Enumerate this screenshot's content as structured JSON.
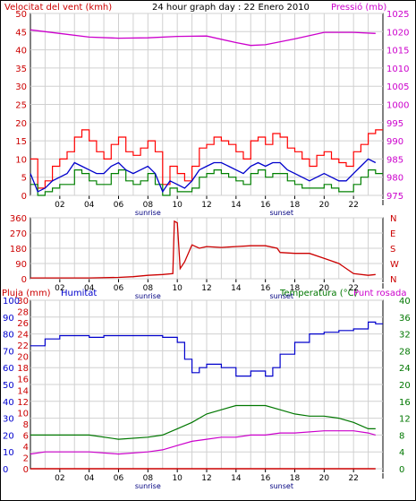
{
  "header": {
    "title": "24 hour graph day : 22 Enero 2010",
    "wind_label": "Velocitat del vent (kmh)",
    "pressure_label": "Pressió (mb)"
  },
  "panel3_labels": {
    "rain": "Pluja (mm)",
    "humidity": "Humitat",
    "temperature": "Temperatura (°C)",
    "dewpoint": "Punt rosada"
  },
  "colors": {
    "wind": "#ff0000",
    "gust_or_avg": "#008000",
    "series_blue": "#0000cc",
    "pressure": "#cc00cc",
    "direction": "#cc0000",
    "humidity": "#0000cc",
    "temperature": "#007700",
    "dewpoint": "#cc00cc",
    "rain": "#cc0000"
  },
  "chart_data": [
    {
      "type": "line",
      "name": "wind-pressure",
      "x_ticks": [
        "02",
        "04",
        "06",
        "08",
        "10",
        "12",
        "14",
        "16",
        "18",
        "20",
        "22",
        ""
      ],
      "x_sublabels": {
        "sunrise": "sunrise",
        "sunset": "sunset"
      },
      "y_left": {
        "ticks": [
          0,
          5,
          10,
          15,
          20,
          25,
          30,
          35,
          40,
          45,
          50
        ],
        "range": [
          0,
          50
        ]
      },
      "y_right": {
        "ticks": [
          975,
          980,
          985,
          990,
          995,
          1000,
          1005,
          1010,
          1015,
          1020,
          1025
        ],
        "range": [
          975,
          1025
        ]
      },
      "series": [
        {
          "role": "gust",
          "x": [
            0.0,
            0.5,
            1.0,
            1.5,
            2.0,
            2.5,
            3.0,
            3.5,
            4.0,
            4.5,
            5.0,
            5.5,
            6.0,
            6.5,
            7.0,
            7.5,
            8.0,
            8.5,
            9.0,
            9.5,
            10.0,
            10.5,
            11.0,
            11.5,
            12.0,
            12.5,
            13.0,
            13.5,
            14.0,
            14.5,
            15.0,
            15.5,
            16.0,
            16.5,
            17.0,
            17.5,
            18.0,
            18.5,
            19.0,
            19.5,
            20.0,
            20.5,
            21.0,
            21.5,
            22.0,
            22.5,
            23.0,
            23.5
          ],
          "values": [
            10,
            2,
            4,
            8,
            10,
            12,
            16,
            18,
            15,
            12,
            10,
            14,
            16,
            12,
            11,
            13,
            15,
            12,
            3,
            8,
            6,
            4,
            8,
            13,
            14,
            16,
            15,
            14,
            12,
            10,
            15,
            16,
            14,
            17,
            16,
            13,
            12,
            10,
            8,
            11,
            12,
            10,
            9,
            8,
            12,
            14,
            17,
            18
          ]
        },
        {
          "role": "average",
          "x": [
            0.0,
            0.5,
            1.0,
            1.5,
            2.0,
            2.5,
            3.0,
            3.5,
            4.0,
            4.5,
            5.0,
            5.5,
            6.0,
            6.5,
            7.0,
            7.5,
            8.0,
            8.5,
            9.0,
            9.5,
            10.0,
            10.5,
            11.0,
            11.5,
            12.0,
            12.5,
            13.0,
            13.5,
            14.0,
            14.5,
            15.0,
            15.5,
            16.0,
            16.5,
            17.0,
            17.5,
            18.0,
            18.5,
            19.0,
            19.5,
            20.0,
            20.5,
            21.0,
            21.5,
            22.0,
            22.5,
            23.0,
            23.5
          ],
          "values": [
            6,
            1,
            2,
            4,
            5,
            6,
            9,
            8,
            7,
            6,
            6,
            8,
            9,
            7,
            6,
            7,
            8,
            6,
            1,
            4,
            3,
            2,
            4,
            7,
            8,
            9,
            9,
            8,
            7,
            6,
            8,
            9,
            8,
            9,
            9,
            7,
            6,
            5,
            4,
            5,
            6,
            5,
            4,
            4,
            6,
            8,
            10,
            9
          ]
        },
        {
          "role": "low",
          "x": [
            0.0,
            0.5,
            1.0,
            1.5,
            2.0,
            2.5,
            3.0,
            3.5,
            4.0,
            4.5,
            5.0,
            5.5,
            6.0,
            6.5,
            7.0,
            7.5,
            8.0,
            8.5,
            9.0,
            9.5,
            10.0,
            10.5,
            11.0,
            11.5,
            12.0,
            12.5,
            13.0,
            13.5,
            14.0,
            14.5,
            15.0,
            15.5,
            16.0,
            16.5,
            17.0,
            17.5,
            18.0,
            18.5,
            19.0,
            19.5,
            20.0,
            20.5,
            21.0,
            21.5,
            22.0,
            22.5,
            23.0,
            23.5
          ],
          "values": [
            3,
            0,
            1,
            2,
            3,
            3,
            7,
            6,
            4,
            3,
            3,
            6,
            7,
            4,
            3,
            4,
            6,
            3,
            0,
            2,
            1,
            1,
            2,
            5,
            6,
            7,
            6,
            5,
            4,
            3,
            6,
            7,
            5,
            6,
            6,
            4,
            3,
            2,
            2,
            2,
            3,
            2,
            1,
            1,
            3,
            5,
            7,
            6
          ]
        },
        {
          "role": "pressure",
          "x": [
            0,
            2,
            4,
            6,
            8,
            10,
            12,
            14,
            15,
            16,
            18,
            20,
            22,
            23.5
          ],
          "values": [
            1020.5,
            1019.5,
            1018.5,
            1018.2,
            1018.3,
            1018.7,
            1018.8,
            1017,
            1016.2,
            1016.4,
            1018,
            1019.8,
            1019.8,
            1019.5
          ]
        }
      ]
    },
    {
      "type": "line",
      "name": "wind-direction",
      "x_ticks": [
        "02",
        "04",
        "06",
        "08",
        "10",
        "12",
        "14",
        "16",
        "18",
        "20",
        "22",
        ""
      ],
      "x_sublabels": {
        "sunrise": "sunrise",
        "sunset": "sunset"
      },
      "y_left": {
        "ticks": [
          0,
          90,
          180,
          270,
          360
        ],
        "range": [
          0,
          360
        ]
      },
      "y_right_labels": [
        "N",
        "W",
        "S",
        "E",
        "N"
      ],
      "series": [
        {
          "role": "direction",
          "x": [
            0,
            2,
            4,
            6,
            7,
            8,
            9,
            9.7,
            9.8,
            10.0,
            10.2,
            10.5,
            11.0,
            11.5,
            12,
            13,
            14,
            15,
            16,
            16.8,
            17,
            18,
            19,
            20,
            21,
            22,
            23,
            23.5
          ],
          "values": [
            5,
            5,
            5,
            8,
            12,
            20,
            25,
            30,
            340,
            330,
            60,
            100,
            200,
            180,
            190,
            185,
            190,
            195,
            195,
            180,
            155,
            150,
            150,
            120,
            90,
            30,
            20,
            25
          ]
        }
      ]
    },
    {
      "type": "line",
      "name": "humidity-temperature",
      "x_ticks": [
        "02",
        "04",
        "06",
        "08",
        "10",
        "12",
        "14",
        "16",
        "18",
        "20",
        "22",
        ""
      ],
      "x_sublabels": {
        "sunrise": "sunrise",
        "sunset": "sunset"
      },
      "y_left_rain": {
        "ticks": [
          0,
          2,
          4,
          6,
          8,
          10,
          12,
          14,
          16,
          18,
          20,
          22,
          24,
          26,
          28,
          30
        ],
        "range": [
          0,
          30
        ]
      },
      "y_left_humidity": {
        "ticks": [
          0,
          10,
          20,
          30,
          40,
          50,
          60,
          70,
          80,
          90,
          100
        ],
        "range": [
          0,
          100
        ]
      },
      "y_right": {
        "ticks": [
          0,
          4,
          8,
          12,
          16,
          20,
          24,
          28,
          32,
          36,
          40
        ],
        "range": [
          0,
          40
        ]
      },
      "series": [
        {
          "role": "humidity",
          "x": [
            0,
            1,
            2,
            3,
            4,
            5,
            6,
            7,
            8,
            9,
            10,
            10.5,
            11,
            11.5,
            12,
            13,
            14,
            14.5,
            15,
            16,
            16.5,
            17,
            18,
            19,
            20,
            21,
            22,
            23,
            23.5
          ],
          "values": [
            73,
            77,
            79,
            79,
            78,
            79,
            79,
            79,
            79,
            78,
            75,
            65,
            57,
            60,
            62,
            60,
            55,
            55,
            58,
            55,
            60,
            68,
            75,
            80,
            81,
            82,
            83,
            87,
            86
          ]
        },
        {
          "role": "temperature",
          "x": [
            0,
            2,
            4,
            6,
            8,
            9,
            10,
            11,
            12,
            13,
            14,
            15,
            16,
            17,
            18,
            19,
            20,
            21,
            22,
            23,
            23.5
          ],
          "values": [
            8,
            8,
            8,
            7,
            7.5,
            8,
            9.5,
            11,
            13,
            14,
            15,
            15,
            15,
            14,
            13,
            12.5,
            12.5,
            12,
            11,
            9.5,
            9.5
          ]
        },
        {
          "role": "dewpoint",
          "x": [
            0,
            1,
            2,
            4,
            6,
            8,
            9,
            10,
            11,
            12,
            13,
            14,
            15,
            16,
            17,
            18,
            20,
            22,
            23,
            23.5
          ],
          "values": [
            3.5,
            4,
            4,
            4,
            3.5,
            4,
            4.5,
            5.5,
            6.5,
            7,
            7.5,
            7.5,
            8,
            8,
            8.5,
            8.5,
            9,
            9,
            8.5,
            8
          ]
        },
        {
          "role": "rain",
          "x": [
            0,
            23.5
          ],
          "values": [
            0,
            0
          ]
        }
      ]
    }
  ]
}
